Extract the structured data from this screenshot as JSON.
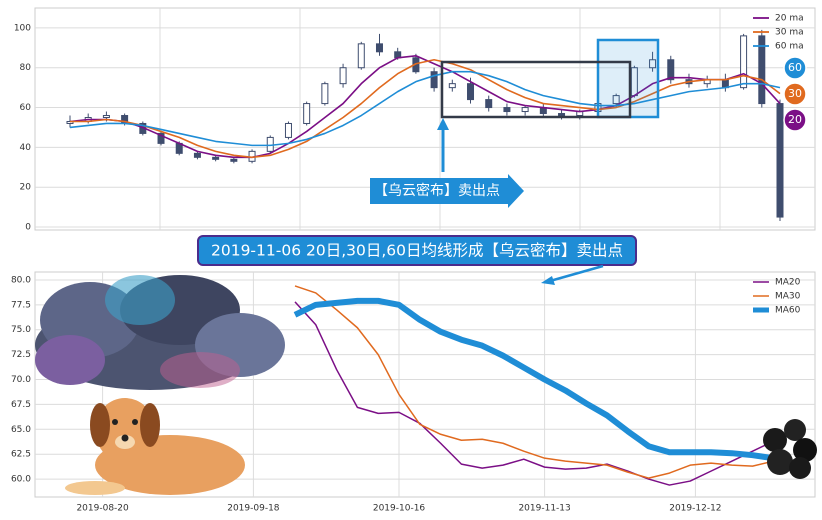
{
  "chart_data": [
    {
      "type": "candlestick",
      "open": [
        52,
        53,
        55,
        56,
        52,
        47,
        42,
        37,
        35,
        34,
        33,
        38,
        45,
        52,
        62,
        72,
        80,
        92,
        88,
        85,
        78,
        70,
        72,
        64,
        60,
        58,
        60,
        57,
        56,
        58,
        62,
        66,
        80,
        84,
        74,
        72,
        74,
        70,
        96,
        62
      ],
      "high": [
        56,
        57,
        58,
        57,
        53,
        48,
        43,
        38,
        36,
        35,
        39,
        46,
        53,
        63,
        73,
        82,
        93,
        97,
        90,
        87,
        80,
        74,
        75,
        66,
        62,
        61,
        62,
        59,
        59,
        63,
        67,
        81,
        88,
        86,
        77,
        76,
        77,
        97,
        99,
        64
      ],
      "low": [
        50,
        52,
        53,
        51,
        46,
        41,
        36,
        34,
        33,
        32,
        32,
        37,
        44,
        51,
        61,
        70,
        79,
        86,
        84,
        77,
        68,
        68,
        62,
        58,
        56,
        56,
        55,
        54,
        54,
        56,
        60,
        65,
        78,
        72,
        70,
        70,
        68,
        69,
        60,
        3
      ],
      "close": [
        53,
        55,
        56,
        52,
        47,
        42,
        37,
        35,
        34,
        33,
        38,
        45,
        52,
        62,
        72,
        80,
        92,
        88,
        85,
        78,
        70,
        72,
        64,
        60,
        58,
        60,
        57,
        56,
        58,
        62,
        66,
        80,
        84,
        74,
        72,
        74,
        70,
        96,
        62,
        5
      ],
      "candle_color": "#3f4d6e",
      "series": [
        {
          "name": "20 ma",
          "color": "#7b0f86",
          "values": [
            53,
            54,
            54,
            53,
            50,
            46,
            42,
            38,
            36,
            35,
            35,
            37,
            42,
            48,
            55,
            62,
            72,
            80,
            85,
            86,
            82,
            78,
            73,
            68,
            63,
            61,
            60,
            59,
            58,
            59,
            61,
            66,
            72,
            75,
            75,
            74,
            74,
            77,
            72,
            62
          ]
        },
        {
          "name": "30 ma",
          "color": "#e06a1f",
          "values": [
            53,
            53,
            54,
            53,
            51,
            48,
            45,
            41,
            38,
            36,
            35,
            36,
            39,
            43,
            49,
            55,
            62,
            70,
            77,
            82,
            84,
            82,
            79,
            74,
            69,
            65,
            62,
            61,
            60,
            59,
            60,
            63,
            67,
            71,
            73,
            74,
            74,
            76,
            74,
            67
          ]
        },
        {
          "name": "60 ma",
          "color": "#1f8dd6",
          "values": [
            50,
            51,
            52,
            52,
            51,
            49,
            47,
            45,
            43,
            42,
            41,
            41,
            42,
            44,
            47,
            51,
            56,
            62,
            68,
            73,
            76,
            78,
            78,
            76,
            73,
            69,
            66,
            64,
            62,
            61,
            61,
            62,
            64,
            66,
            68,
            69,
            70,
            72,
            72,
            70
          ]
        }
      ],
      "ylim": [
        -1.5,
        110
      ],
      "yticks": [
        0,
        20,
        40,
        60,
        80,
        100
      ],
      "grid": true,
      "legend": "upper right",
      "annotation": "【乌云密布】卖出点",
      "badges": [
        {
          "text": "60",
          "color": "#1f8dd6"
        },
        {
          "text": "30",
          "color": "#e06a1f"
        },
        {
          "text": "20",
          "color": "#7b0f86"
        }
      ]
    },
    {
      "type": "line",
      "x": [
        "2019-09-26",
        "2019-09-30",
        "2019-10-04",
        "2019-10-08",
        "2019-10-12",
        "2019-10-16",
        "2019-10-20",
        "2019-10-24",
        "2019-10-28",
        "2019-11-01",
        "2019-11-05",
        "2019-11-09",
        "2019-11-13",
        "2019-11-17",
        "2019-11-21",
        "2019-11-25",
        "2019-11-29",
        "2019-12-03",
        "2019-12-07",
        "2019-12-11",
        "2019-12-15",
        "2019-12-19",
        "2019-12-23",
        "2019-12-27"
      ],
      "series": [
        {
          "name": "MA20",
          "color": "#7b0f86",
          "width": 1.5,
          "values": [
            77.8,
            75.5,
            71,
            67.2,
            66.6,
            66.7,
            65.6,
            63.6,
            61.5,
            61.1,
            61.4,
            62,
            61.2,
            61,
            61.1,
            61.5,
            60.8,
            60,
            59.4,
            59.8,
            60.8,
            61.8,
            62.8,
            63.8
          ]
        },
        {
          "name": "MA30",
          "color": "#e06a1f",
          "width": 1.5,
          "values": [
            79.4,
            78.7,
            77,
            75.2,
            72.5,
            68.5,
            65.5,
            64.5,
            63.9,
            64,
            63.6,
            62.8,
            62.1,
            61.8,
            61.6,
            61.4,
            60.7,
            60.1,
            60.6,
            61.4,
            61.6,
            61.4,
            61.3,
            61.8
          ]
        },
        {
          "name": "MA60",
          "color": "#1f8dd6",
          "width": 6,
          "values": [
            76.5,
            77.5,
            77.7,
            77.9,
            77.9,
            77.5,
            76,
            74.8,
            74,
            73.4,
            72.4,
            71.2,
            70,
            68.9,
            67.6,
            66.4,
            64.8,
            63.3,
            62.7,
            62.7,
            62.7,
            62.6,
            62.4,
            62.1
          ]
        }
      ],
      "xlim": [
        "2019-08-07",
        "2020-01-04"
      ],
      "xticks": [
        "2019-08-20",
        "2019-09-18",
        "2019-10-16",
        "2019-11-13",
        "2019-12-12"
      ],
      "ylim": [
        58.2,
        80.8
      ],
      "yticks": [
        {
          "value": 60,
          "label": "60.0"
        },
        62.5,
        {
          "value": 65,
          "label": "65.0"
        },
        67.5,
        {
          "value": 70,
          "label": "70.0"
        },
        72.5,
        {
          "value": 75,
          "label": "75.0"
        },
        77.5,
        {
          "value": 80,
          "label": "80.0"
        }
      ],
      "grid": true,
      "legend": "upper right",
      "annotation": "2019-11-06 20日,30日,60日均线形成【乌云密布】卖出点"
    }
  ]
}
